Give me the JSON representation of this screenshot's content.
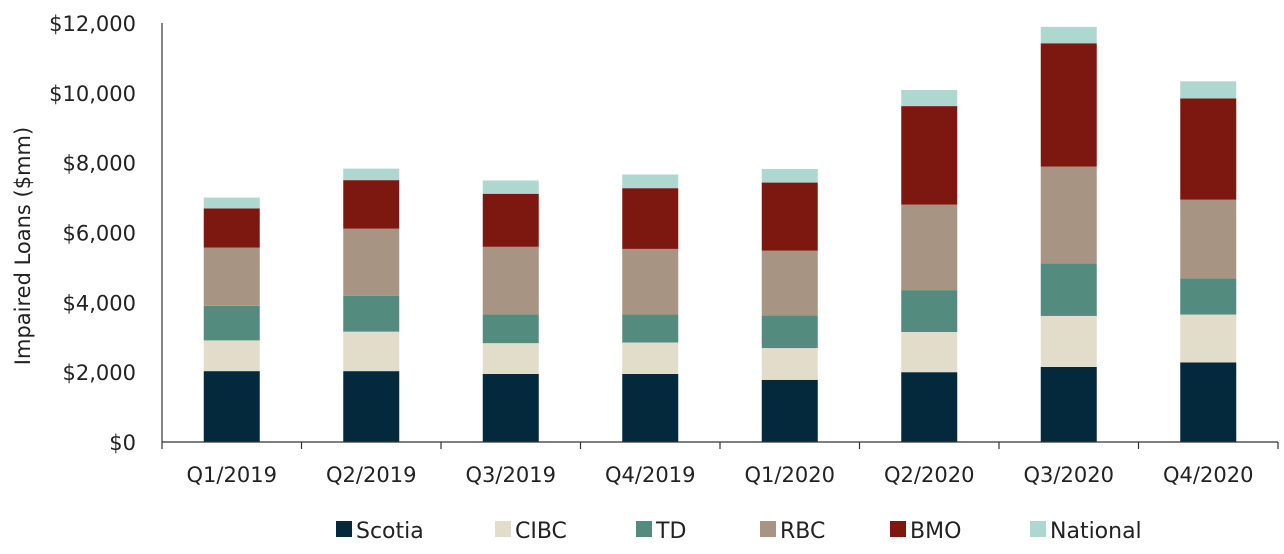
{
  "chart_data": {
    "type": "bar",
    "stacked": true,
    "title": "",
    "xlabel": "",
    "ylabel": "Impaired Loans ($mm)",
    "ylim": [
      0,
      12000
    ],
    "y_ticks": [
      0,
      2000,
      4000,
      6000,
      8000,
      10000,
      12000
    ],
    "y_tick_labels": [
      "$0",
      "$2,000",
      "$4,000",
      "$6,000",
      "$8,000",
      "$10,000",
      "$12,000"
    ],
    "grid": false,
    "legend_position": "bottom",
    "categories": [
      "Q1/2019",
      "Q2/2019",
      "Q3/2019",
      "Q4/2019",
      "Q1/2020",
      "Q2/2020",
      "Q3/2020",
      "Q4/2020"
    ],
    "series": [
      {
        "name": "Scotia",
        "color": "#04293d",
        "values": [
          2030,
          2030,
          1950,
          1950,
          1780,
          2000,
          2150,
          2280
        ]
      },
      {
        "name": "CIBC",
        "color": "#e2ddcb",
        "values": [
          880,
          1130,
          880,
          900,
          910,
          1150,
          1460,
          1370
        ]
      },
      {
        "name": "TD",
        "color": "#538c7f",
        "values": [
          990,
          1030,
          830,
          800,
          940,
          1200,
          1500,
          1040
        ]
      },
      {
        "name": "RBC",
        "color": "#a89482",
        "values": [
          1670,
          1920,
          1930,
          1880,
          1850,
          2450,
          2780,
          2250
        ]
      },
      {
        "name": "BMO",
        "color": "#7d1810",
        "values": [
          1120,
          1390,
          1520,
          1740,
          1950,
          2820,
          3530,
          2900
        ]
      },
      {
        "name": "National",
        "color": "#aed7cf",
        "values": [
          310,
          330,
          380,
          390,
          390,
          460,
          470,
          490
        ]
      }
    ]
  }
}
